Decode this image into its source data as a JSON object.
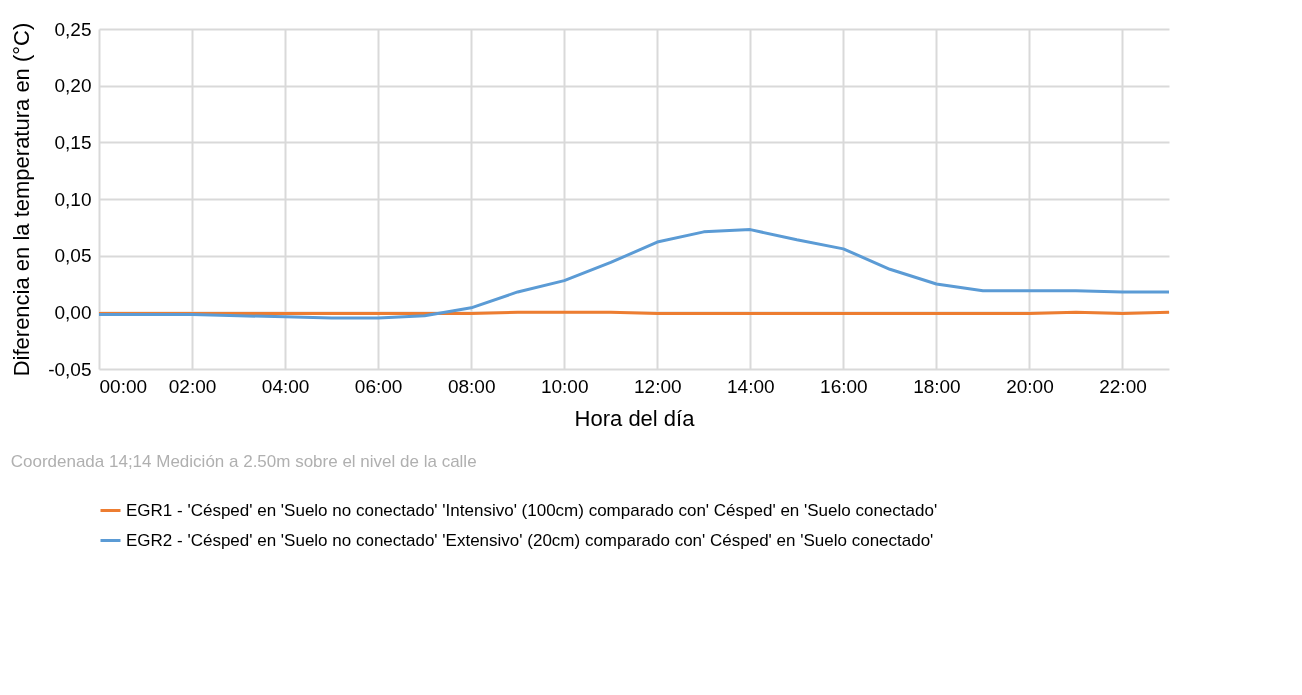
{
  "chart_data": {
    "type": "line",
    "xlabel": "Hora del día",
    "ylabel": "Diferencia en la temperatura en (°C)",
    "annotations": [
      "Coordenada 14;14 Medición a 2.50m sobre el nivel de la calle"
    ],
    "x": [
      0,
      1,
      2,
      3,
      4,
      5,
      6,
      7,
      8,
      9,
      10,
      11,
      12,
      13,
      14,
      15,
      16,
      17,
      18,
      19,
      20,
      21,
      22,
      23
    ],
    "series": [
      {
        "name": "EGR1 - 'Césped' en  'Suelo no conectado' 'Intensivo' (100cm) comparado con' Césped' en 'Suelo conectado'",
        "color": "#ed7d31",
        "values": [
          -0.001,
          -0.001,
          -0.001,
          -0.001,
          -0.001,
          -0.001,
          -0.001,
          -0.001,
          -0.001,
          0.0,
          0.0,
          0.0,
          -0.001,
          -0.001,
          -0.001,
          -0.001,
          -0.001,
          -0.001,
          -0.001,
          -0.001,
          -0.001,
          0.0,
          -0.001,
          0.0
        ]
      },
      {
        "name": "EGR2 - 'Césped' en  'Suelo no conectado' 'Extensivo' (20cm) comparado con' Césped' en 'Suelo conectado'",
        "color": "#5b9bd5",
        "values": [
          -0.002,
          -0.002,
          -0.002,
          -0.003,
          -0.004,
          -0.005,
          -0.005,
          -0.003,
          0.004,
          0.018,
          0.028,
          0.044,
          0.062,
          0.071,
          0.073,
          0.064,
          0.056,
          0.038,
          0.025,
          0.019,
          0.019,
          0.019,
          0.018,
          0.018
        ]
      }
    ],
    "xlim": [
      0,
      23
    ],
    "xticks": [
      {
        "value": 0,
        "label": "00:00"
      },
      {
        "value": 2,
        "label": "02:00"
      },
      {
        "value": 4,
        "label": "04:00"
      },
      {
        "value": 6,
        "label": "06:00"
      },
      {
        "value": 8,
        "label": "08:00"
      },
      {
        "value": 10,
        "label": "10:00"
      },
      {
        "value": 12,
        "label": "12:00"
      },
      {
        "value": 14,
        "label": "14:00"
      },
      {
        "value": 16,
        "label": "16:00"
      },
      {
        "value": 18,
        "label": "18:00"
      },
      {
        "value": 20,
        "label": "20:00"
      },
      {
        "value": 22,
        "label": "22:00"
      }
    ],
    "ylim": [
      -0.05,
      0.25
    ],
    "yticks": [
      {
        "value": -0.05,
        "label": "-0,05"
      },
      {
        "value": 0,
        "label": "0,00"
      },
      {
        "value": 0.05,
        "label": "0,05"
      },
      {
        "value": 0.1,
        "label": "0,10"
      },
      {
        "value": 0.15,
        "label": "0,15"
      },
      {
        "value": 0.2,
        "label": "0,20"
      },
      {
        "value": 0.25,
        "label": "0,25"
      }
    ],
    "grid": true,
    "legend": "bottom",
    "line_style": "solid",
    "marker": "none"
  }
}
